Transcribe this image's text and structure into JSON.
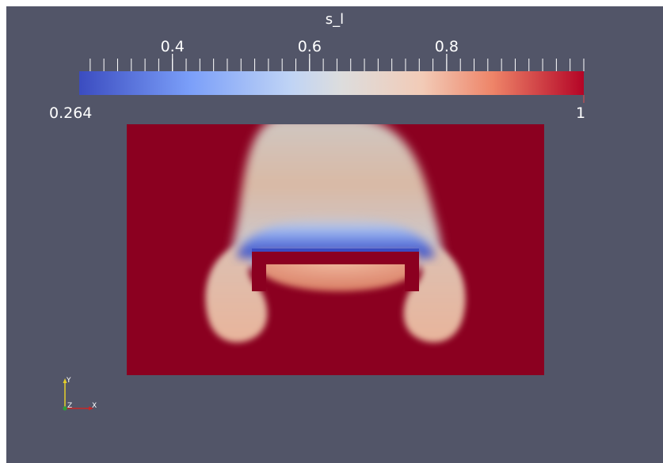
{
  "colorbar": {
    "title": "s_l",
    "tick_labels": [
      "0.4",
      "0.6",
      "0.8"
    ],
    "tick_values": [
      0.4,
      0.6,
      0.8
    ],
    "range_min_label": "0.264",
    "range_max_label": "1",
    "range": [
      0.264,
      1
    ],
    "colormap": "Cool to Warm",
    "color_low": "#3b4cc0",
    "color_mid": "#dddddd",
    "color_high": "#b40426"
  },
  "scene": {
    "background_color": "#525568",
    "field_high_color": "#8b0020",
    "obstacle_color": "#8b0020"
  },
  "orientation_axes": {
    "x_label": "X",
    "y_label": "Y",
    "z_label": "Z",
    "x_color": "#c62828",
    "y_color": "#e6d02a",
    "z_color": "#2e9d3a"
  }
}
